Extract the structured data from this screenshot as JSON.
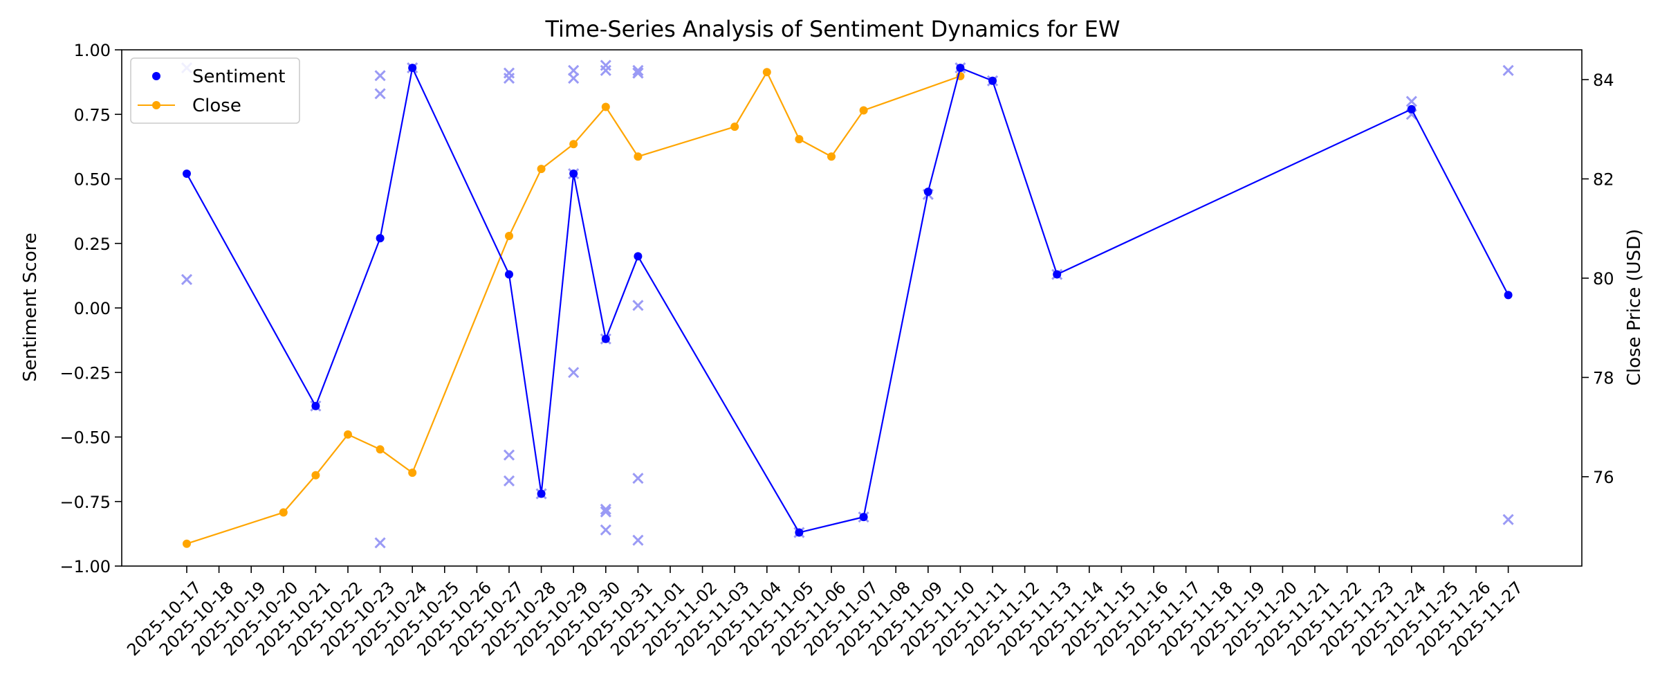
{
  "chart_data": {
    "type": "line",
    "title": "Time-Series Analysis of Sentiment Dynamics for EW",
    "xlabel": "",
    "ylabel": "Sentiment Score",
    "y2label": "Close Price (USD)",
    "x_ticks": [
      "2025-10-17",
      "2025-10-18",
      "2025-10-19",
      "2025-10-20",
      "2025-10-21",
      "2025-10-22",
      "2025-10-23",
      "2025-10-24",
      "2025-10-25",
      "2025-10-26",
      "2025-10-27",
      "2025-10-28",
      "2025-10-29",
      "2025-10-30",
      "2025-10-31",
      "2025-11-01",
      "2025-11-02",
      "2025-11-03",
      "2025-11-04",
      "2025-11-05",
      "2025-11-06",
      "2025-11-07",
      "2025-11-08",
      "2025-11-09",
      "2025-11-10",
      "2025-11-11",
      "2025-11-12",
      "2025-11-13",
      "2025-11-14",
      "2025-11-15",
      "2025-11-16",
      "2025-11-17",
      "2025-11-18",
      "2025-11-19",
      "2025-11-20",
      "2025-11-21",
      "2025-11-22",
      "2025-11-23",
      "2025-11-24",
      "2025-11-25",
      "2025-11-26",
      "2025-11-27"
    ],
    "y_ticks": [
      "1.00",
      "0.75",
      "0.50",
      "0.25",
      "0.00",
      "−0.25",
      "−0.50",
      "−0.75",
      "−1.00"
    ],
    "y2_ticks": [
      "84",
      "82",
      "80",
      "78",
      "76"
    ],
    "ylim": [
      -1.0,
      1.0
    ],
    "y2lim": [
      74.2,
      84.6
    ],
    "grid": false,
    "legend_position": "top-left",
    "colors": {
      "sentiment": "#0000ff",
      "close": "#ffa500",
      "raw": "#9a9af5"
    },
    "series": [
      {
        "name": "Sentiment",
        "axis": "left",
        "dates": [
          "2025-10-17",
          "2025-10-21",
          "2025-10-23",
          "2025-10-24",
          "2025-10-27",
          "2025-10-28",
          "2025-10-29",
          "2025-10-30",
          "2025-10-31",
          "2025-11-05",
          "2025-11-07",
          "2025-11-09",
          "2025-11-10",
          "2025-11-11",
          "2025-11-13",
          "2025-11-24",
          "2025-11-27"
        ],
        "values": [
          0.52,
          -0.38,
          0.27,
          0.93,
          0.13,
          -0.72,
          0.52,
          -0.12,
          0.2,
          -0.87,
          -0.81,
          0.45,
          0.93,
          0.88,
          0.13,
          0.77,
          0.05
        ]
      },
      {
        "name": "Close",
        "axis": "right",
        "dates": [
          "2025-10-17",
          "2025-10-20",
          "2025-10-21",
          "2025-10-22",
          "2025-10-23",
          "2025-10-24",
          "2025-10-27",
          "2025-10-28",
          "2025-10-29",
          "2025-10-30",
          "2025-10-31",
          "2025-11-03",
          "2025-11-04",
          "2025-11-05",
          "2025-11-06",
          "2025-11-07",
          "2025-11-10"
        ],
        "values": [
          74.65,
          75.28,
          76.03,
          76.85,
          76.55,
          76.08,
          80.85,
          82.2,
          82.7,
          83.45,
          82.45,
          83.05,
          84.15,
          82.8,
          82.45,
          83.38,
          84.07
        ]
      },
      {
        "name": "",
        "axis": "left",
        "marker": "x",
        "dates": [
          "2025-10-17",
          "2025-10-17",
          "2025-10-21",
          "2025-10-23",
          "2025-10-23",
          "2025-10-23",
          "2025-10-24",
          "2025-10-27",
          "2025-10-27",
          "2025-10-27",
          "2025-10-27",
          "2025-10-28",
          "2025-10-29",
          "2025-10-29",
          "2025-10-29",
          "2025-10-29",
          "2025-10-30",
          "2025-10-30",
          "2025-10-30",
          "2025-10-30",
          "2025-10-30",
          "2025-10-30",
          "2025-10-31",
          "2025-10-31",
          "2025-10-31",
          "2025-10-31",
          "2025-10-31",
          "2025-10-31",
          "2025-11-05",
          "2025-11-07",
          "2025-11-09",
          "2025-11-10",
          "2025-11-11",
          "2025-11-13",
          "2025-11-24",
          "2025-11-24",
          "2025-11-27",
          "2025-11-27"
        ],
        "values": [
          0.93,
          0.11,
          -0.38,
          0.9,
          0.83,
          -0.91,
          0.93,
          0.91,
          0.89,
          -0.57,
          -0.67,
          -0.72,
          0.92,
          0.89,
          0.52,
          -0.25,
          0.94,
          0.92,
          -0.78,
          -0.79,
          -0.86,
          -0.12,
          0.92,
          0.91,
          0.91,
          0.01,
          -0.66,
          -0.9,
          -0.87,
          -0.81,
          0.44,
          0.93,
          0.88,
          0.13,
          0.8,
          0.75,
          0.92,
          -0.82
        ]
      }
    ]
  }
}
